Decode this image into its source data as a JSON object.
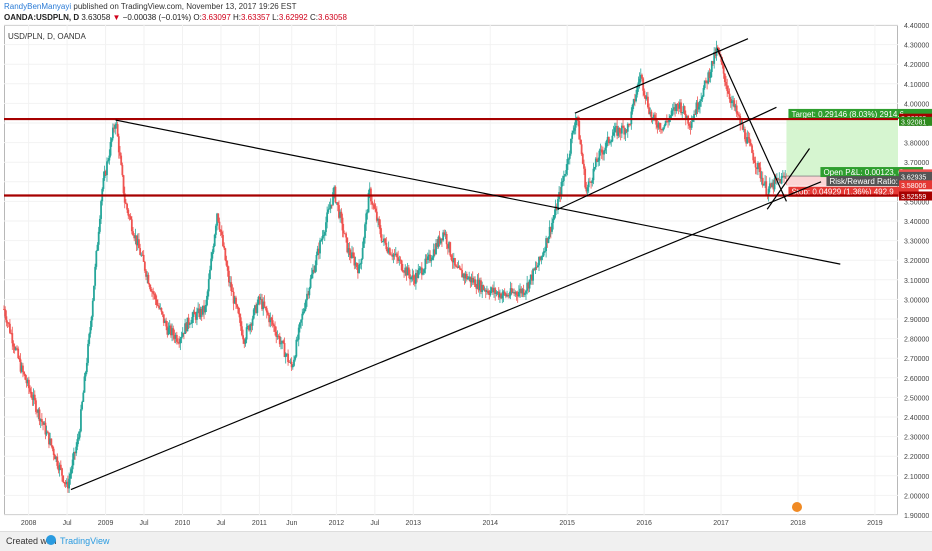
{
  "header": {
    "author": "RandyBenManyayi",
    "published_text": "published on TradingView.com, November 13, 2017 19:26 EST",
    "symbol": "OANDA:USDPLN, D",
    "last": "3.63058",
    "arrow": "▼",
    "change": "−0.00038 (−0.01%)",
    "o_label": "O:",
    "o_val": "3.63097",
    "h_label": "H:",
    "h_val": "3.63357",
    "l_label": "L:",
    "l_val": "3.62992",
    "c_label": "C:",
    "c_val": "3.63058"
  },
  "pane_label": "USD/PLN, D, OANDA",
  "footer": {
    "created": "Created with",
    "brand": "TradingView"
  },
  "colors": {
    "up": "#26a69a",
    "down": "#ef5350",
    "level": "#a60000",
    "target": "#d6f5d0",
    "stop": "#fbd5d5",
    "trend": "#000000"
  },
  "chart_data": {
    "type": "candlestick",
    "symbol": "USD/PLN",
    "xlabels": [
      "2008",
      "Jul",
      "2009",
      "Jul",
      "2010",
      "Jul",
      "2011",
      "Jun",
      "2012",
      "Jul",
      "2013",
      "2014",
      "2015",
      "2016",
      "2017",
      "2018",
      "2019"
    ],
    "x_tick_times": [
      2008.0,
      2008.5,
      2009.0,
      2009.5,
      2010.0,
      2010.5,
      2011.0,
      2011.42,
      2012.0,
      2012.5,
      2013.0,
      2014.0,
      2015.0,
      2016.0,
      2017.0,
      2018.0,
      2019.0
    ],
    "xrange": [
      2007.68,
      2019.3
    ],
    "ylim": [
      1.9,
      4.4
    ],
    "yticks": [
      "1.90000",
      "2.00000",
      "2.10000",
      "2.20000",
      "2.30000",
      "2.40000",
      "2.50000",
      "2.60000",
      "2.70000",
      "2.80000",
      "2.90000",
      "3.00000",
      "3.10000",
      "3.20000",
      "3.30000",
      "3.40000",
      "3.50000",
      "3.60000",
      "3.70000",
      "3.80000",
      "3.90000",
      "4.00000",
      "4.10000",
      "4.20000",
      "4.30000",
      "4.40000"
    ],
    "ytick_values": [
      1.9,
      2.0,
      2.1,
      2.2,
      2.3,
      2.4,
      2.5,
      2.6,
      2.7,
      2.8,
      2.9,
      3.0,
      3.1,
      3.2,
      3.3,
      3.4,
      3.5,
      3.6,
      3.7,
      3.8,
      3.9,
      4.0,
      4.1,
      4.2,
      4.3,
      4.4
    ],
    "price_path": [
      [
        2007.68,
        2.95
      ],
      [
        2007.9,
        2.65
      ],
      [
        2008.1,
        2.45
      ],
      [
        2008.3,
        2.25
      ],
      [
        2008.5,
        2.04
      ],
      [
        2008.65,
        2.3
      ],
      [
        2008.8,
        2.85
      ],
      [
        2008.95,
        3.55
      ],
      [
        2009.13,
        3.92
      ],
      [
        2009.25,
        3.5
      ],
      [
        2009.4,
        3.3
      ],
      [
        2009.6,
        3.05
      ],
      [
        2009.8,
        2.85
      ],
      [
        2009.95,
        2.8
      ],
      [
        2010.1,
        2.9
      ],
      [
        2010.3,
        2.95
      ],
      [
        2010.45,
        3.45
      ],
      [
        2010.6,
        3.1
      ],
      [
        2010.8,
        2.8
      ],
      [
        2011.0,
        3.0
      ],
      [
        2011.2,
        2.85
      ],
      [
        2011.42,
        2.65
      ],
      [
        2011.6,
        3.0
      ],
      [
        2011.8,
        3.3
      ],
      [
        2011.97,
        3.55
      ],
      [
        2012.15,
        3.25
      ],
      [
        2012.3,
        3.15
      ],
      [
        2012.43,
        3.55
      ],
      [
        2012.6,
        3.3
      ],
      [
        2012.8,
        3.2
      ],
      [
        2013.0,
        3.1
      ],
      [
        2013.2,
        3.2
      ],
      [
        2013.4,
        3.35
      ],
      [
        2013.55,
        3.15
      ],
      [
        2013.75,
        3.1
      ],
      [
        2013.95,
        3.05
      ],
      [
        2014.2,
        3.02
      ],
      [
        2014.45,
        3.05
      ],
      [
        2014.65,
        3.2
      ],
      [
        2014.85,
        3.45
      ],
      [
        2015.0,
        3.7
      ],
      [
        2015.12,
        3.95
      ],
      [
        2015.25,
        3.55
      ],
      [
        2015.4,
        3.72
      ],
      [
        2015.6,
        3.85
      ],
      [
        2015.8,
        3.88
      ],
      [
        2015.95,
        4.15
      ],
      [
        2016.1,
        3.92
      ],
      [
        2016.25,
        3.88
      ],
      [
        2016.45,
        4.0
      ],
      [
        2016.6,
        3.9
      ],
      [
        2016.8,
        4.1
      ],
      [
        2016.95,
        4.28
      ],
      [
        2017.1,
        4.05
      ],
      [
        2017.3,
        3.85
      ],
      [
        2017.45,
        3.7
      ],
      [
        2017.6,
        3.55
      ],
      [
        2017.72,
        3.6
      ],
      [
        2017.87,
        3.63
      ]
    ],
    "horizontal_levels": [
      3.92,
      3.53
    ],
    "trend_lines": [
      {
        "from": [
          2009.13,
          3.915
        ],
        "to": [
          2018.55,
          3.18
        ]
      },
      {
        "from": [
          2008.55,
          2.03
        ],
        "to": [
          2018.3,
          3.6
        ]
      },
      {
        "from": [
          2014.88,
          3.46
        ],
        "to": [
          2017.72,
          3.98
        ]
      },
      {
        "from": [
          2015.1,
          3.95
        ],
        "to": [
          2017.35,
          4.33
        ]
      },
      {
        "from": [
          2016.95,
          4.28
        ],
        "to": [
          2017.85,
          3.5
        ]
      },
      {
        "from": [
          2017.6,
          3.46
        ],
        "to": [
          2018.15,
          3.77
        ]
      }
    ],
    "position": {
      "entry": 3.62935,
      "target": 3.92081,
      "stop": 3.58006,
      "x_from": 2017.85,
      "x_to": 2019.3,
      "target_label": "Target: 0.29146 (8.03%) 2914.6",
      "open_label": "Open P&L: 0.00123, Qt",
      "ratio_label": "Risk/Reward Ratio:",
      "stop_label": "Stop: 0.04929 (1.36%) 492.9"
    },
    "price_tags": [
      {
        "label": "3.92263",
        "value": 3.922,
        "color": "#a60000"
      },
      {
        "label": "3.92081",
        "value": 3.906,
        "color": "#2e8b1e"
      },
      {
        "label": "3.63058",
        "value": 3.638,
        "color": "#ef5350"
      },
      {
        "label": "3.62935",
        "value": 3.625,
        "color": "#555555"
      },
      {
        "label": "3.58006",
        "value": 3.582,
        "color": "#e53935"
      },
      {
        "label": "3.52559",
        "value": 3.525,
        "color": "#a60000"
      }
    ]
  }
}
